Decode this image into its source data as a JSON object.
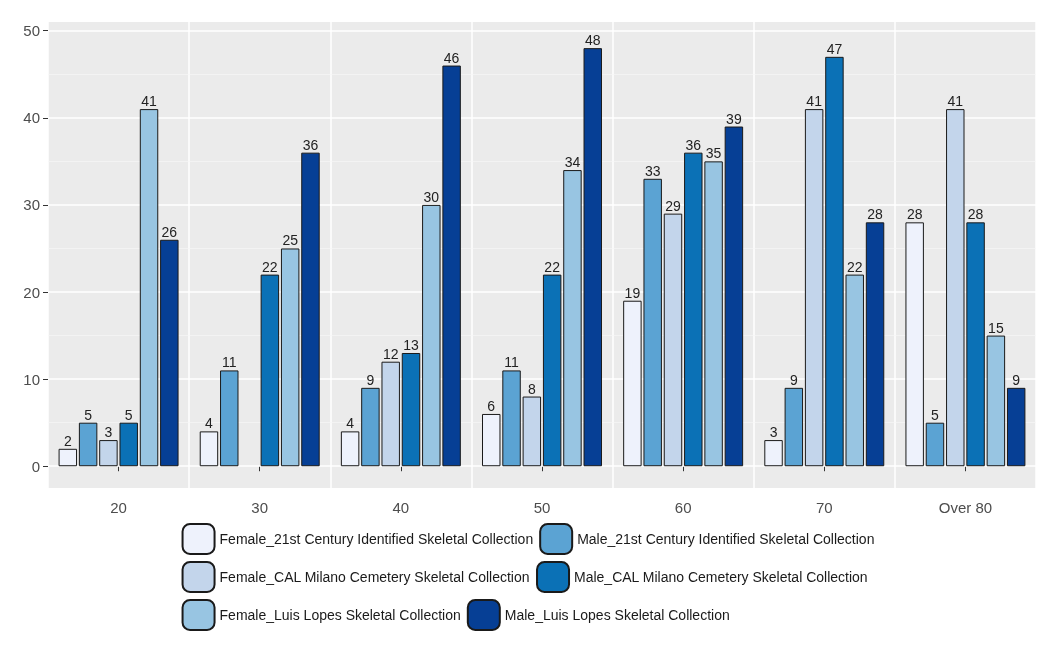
{
  "chart_data": {
    "type": "bar",
    "categories": [
      "20",
      "30",
      "40",
      "50",
      "60",
      "70",
      "Over 80"
    ],
    "series": [
      {
        "name": "Female_21st Century Identified Skeletal Collection",
        "color": "#eef2fc",
        "values": [
          2,
          4,
          4,
          6,
          19,
          3,
          28
        ]
      },
      {
        "name": "Male_21st Century Identified Skeletal Collection",
        "color": "#5ba3d3",
        "values": [
          5,
          11,
          9,
          11,
          33,
          9,
          5
        ]
      },
      {
        "name": "Female_CAL Milano Cemetery Skeletal Collection",
        "color": "#c3d5eb",
        "values": [
          3,
          null,
          12,
          8,
          29,
          41,
          41
        ]
      },
      {
        "name": "Male_CAL Milano Cemetery Skeletal Collection",
        "color": "#0b71b6",
        "values": [
          5,
          22,
          13,
          22,
          36,
          47,
          28
        ]
      },
      {
        "name": "Female_Luis Lopes Skeletal Collection",
        "color": "#98c5e2",
        "values": [
          41,
          25,
          30,
          34,
          35,
          22,
          15
        ]
      },
      {
        "name": "Male_Luis Lopes Skeletal Collection",
        "color": "#063f95",
        "values": [
          26,
          36,
          46,
          48,
          39,
          28,
          9
        ]
      }
    ],
    "ylim": [
      -2.5,
      51
    ],
    "yticks": [
      0,
      10,
      20,
      30,
      40,
      50
    ],
    "grid": true,
    "data_labels": true,
    "legend": "bottom"
  }
}
